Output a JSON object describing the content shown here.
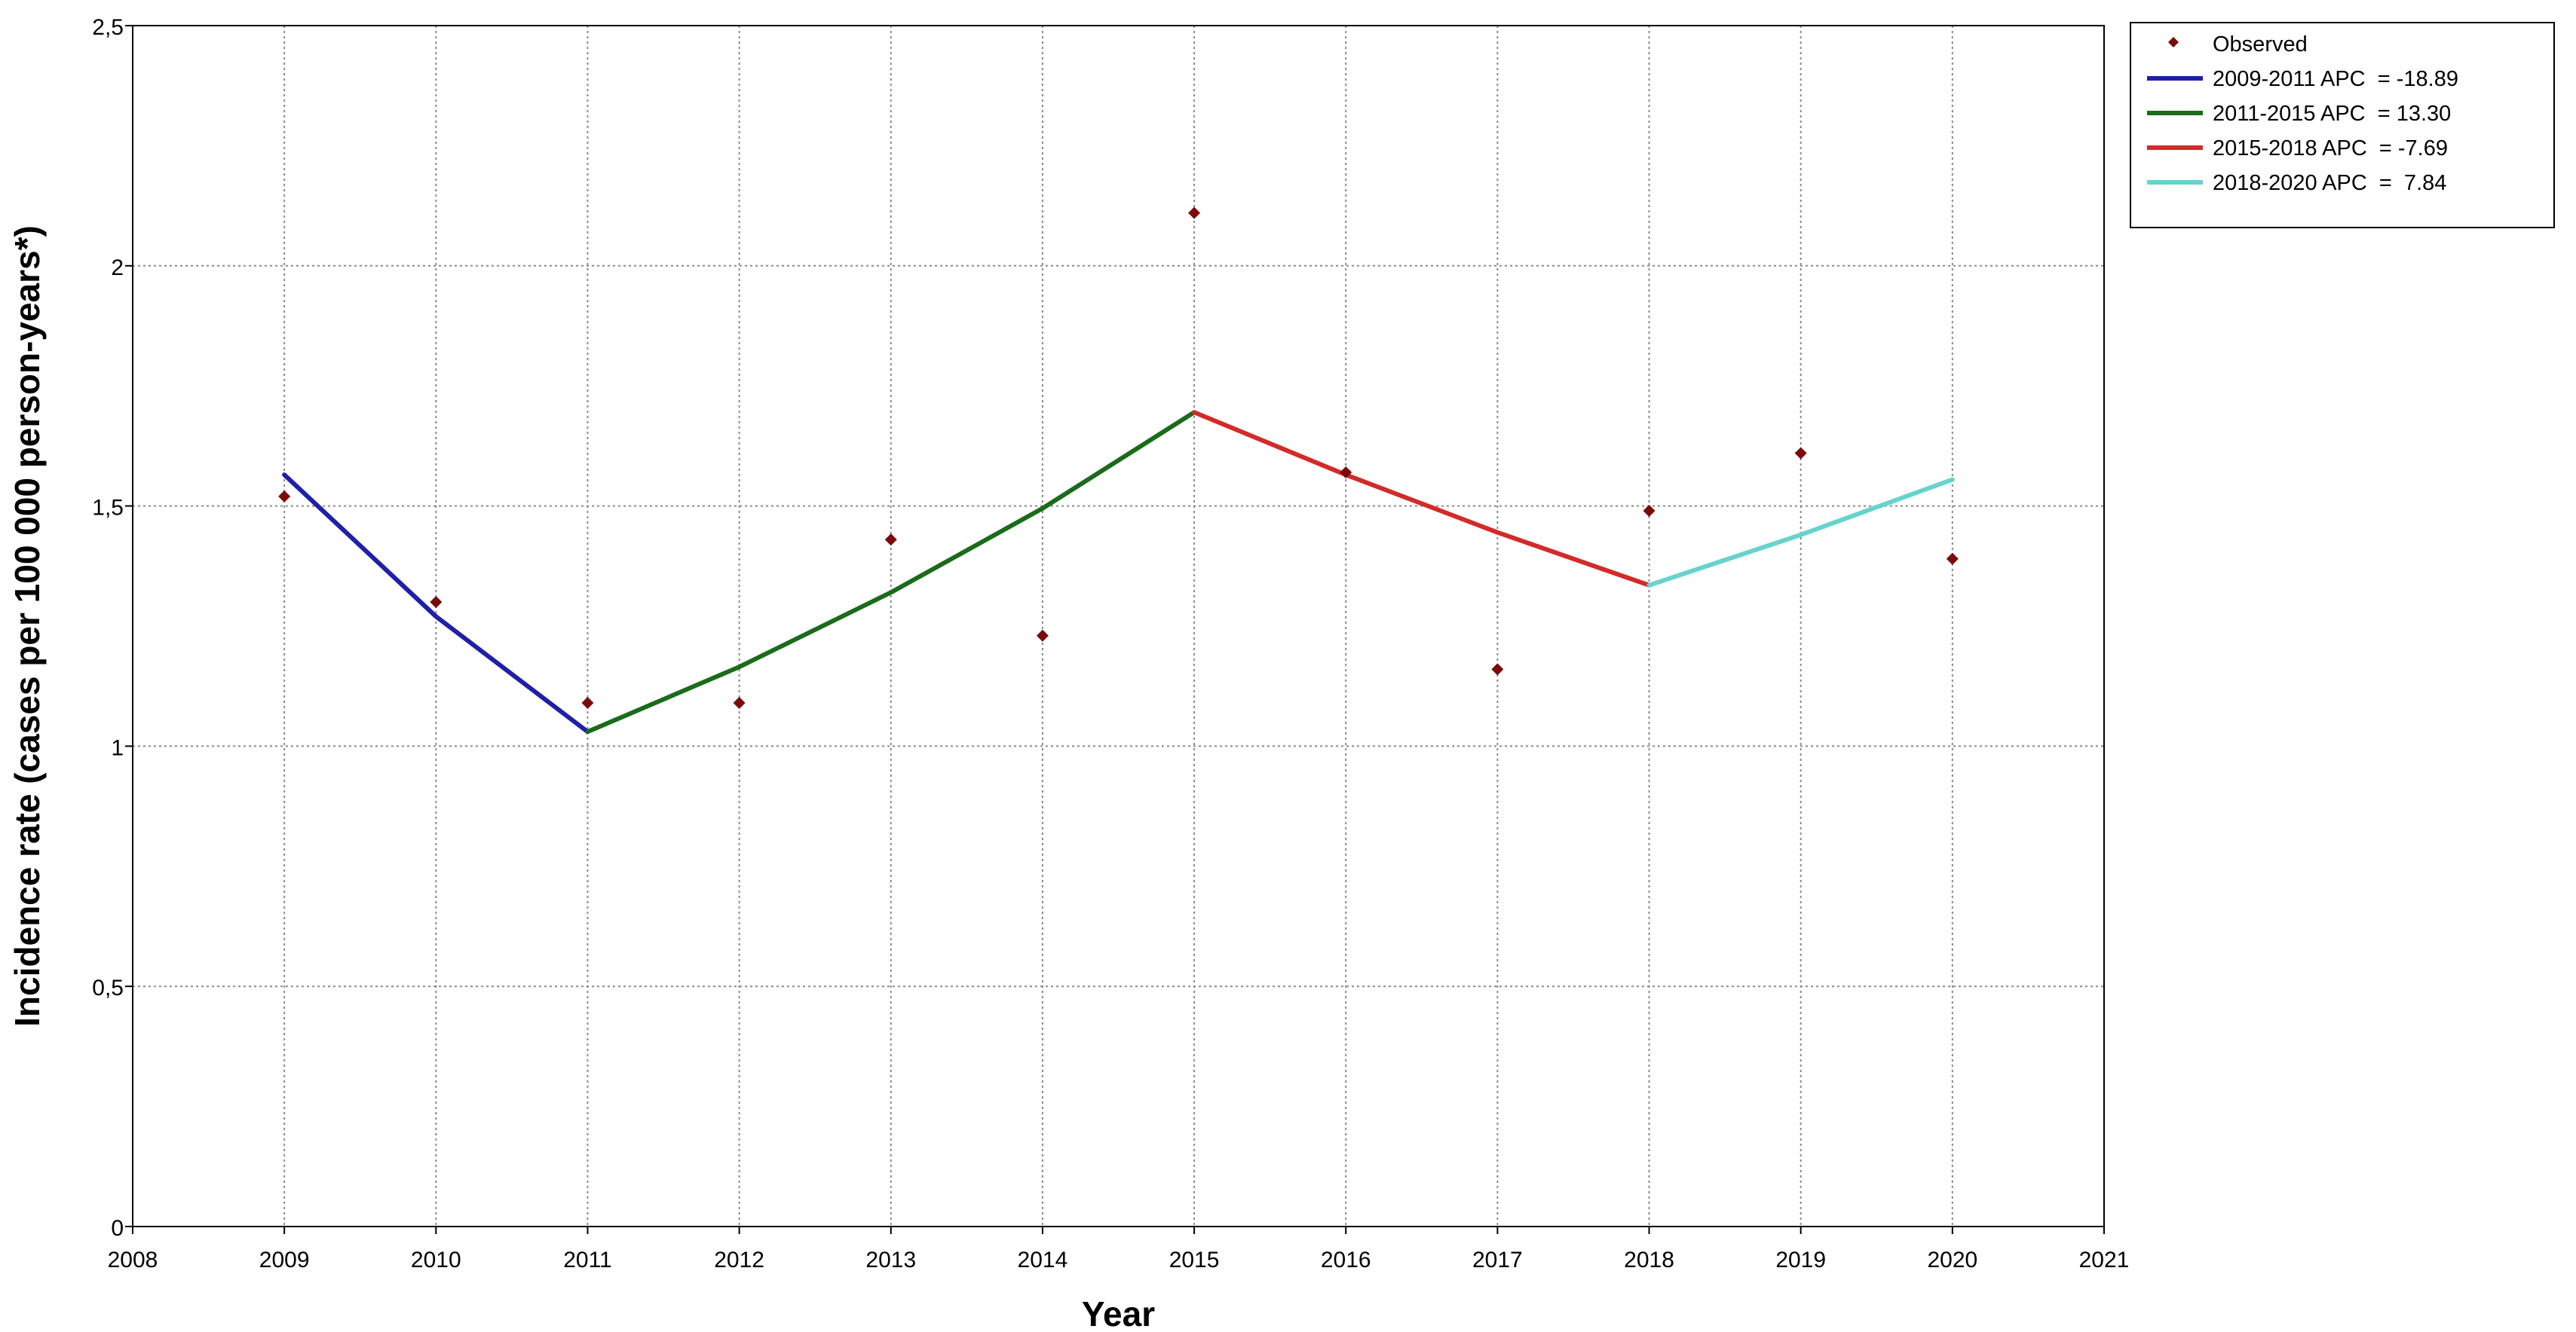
{
  "chart_data": {
    "type": "line",
    "xlabel": "Year",
    "ylabel": "Incidence rate (cases per 100 000 person-years*)",
    "xlim": [
      2008,
      2021
    ],
    "ylim": [
      0,
      2.5
    ],
    "x_ticks": [
      "2008",
      "2009",
      "2010",
      "2011",
      "2012",
      "2013",
      "2014",
      "2015",
      "2016",
      "2017",
      "2018",
      "2019",
      "2020",
      "2021"
    ],
    "y_ticks": [
      {
        "value": 0,
        "label": "0"
      },
      {
        "value": 0.5,
        "label": "0,5"
      },
      {
        "value": 1,
        "label": "1"
      },
      {
        "value": 1.5,
        "label": "1,5"
      },
      {
        "value": 2,
        "label": "2"
      },
      {
        "value": 2.5,
        "label": "2,5"
      }
    ],
    "grid": true,
    "legend_position": "outside-top-right",
    "observed": {
      "name": "Observed",
      "color": "#7b0a0a",
      "x": [
        2009,
        2010,
        2011,
        2012,
        2013,
        2014,
        2015,
        2016,
        2017,
        2018,
        2019,
        2020
      ],
      "y": [
        1.52,
        1.3,
        1.09,
        1.09,
        1.43,
        1.23,
        2.11,
        1.57,
        1.16,
        1.49,
        1.61,
        1.39
      ]
    },
    "series": [
      {
        "name": "2009-2011 APC  = -18.89",
        "color": "#1f1fa8",
        "x": [
          2009,
          2010,
          2011
        ],
        "y": [
          1.565,
          1.27,
          1.03
        ]
      },
      {
        "name": "2011-2015 APC  = 13.30",
        "color": "#1a6b1a",
        "x": [
          2011,
          2012,
          2013,
          2014,
          2015
        ],
        "y": [
          1.03,
          1.165,
          1.32,
          1.495,
          1.695
        ]
      },
      {
        "name": "2015-2018 APC  = -7.69",
        "color": "#d42a2a",
        "x": [
          2015,
          2016,
          2017,
          2018
        ],
        "y": [
          1.695,
          1.565,
          1.445,
          1.335
        ]
      },
      {
        "name": "2018-2020 APC  =  7.84",
        "color": "#66d4cc",
        "x": [
          2018,
          2019,
          2020
        ],
        "y": [
          1.335,
          1.44,
          1.555
        ]
      }
    ]
  }
}
